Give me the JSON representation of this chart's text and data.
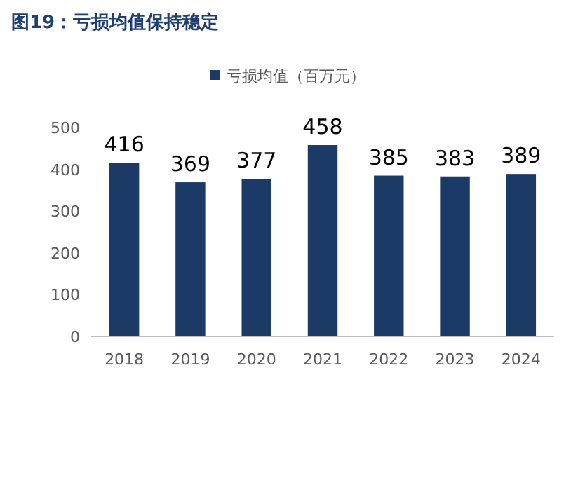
{
  "chart_data": {
    "type": "bar",
    "title": "图19：亏损均值保持稳定",
    "categories": [
      "2018",
      "2019",
      "2020",
      "2021",
      "2022",
      "2023",
      "2024"
    ],
    "series": [
      {
        "name": "亏损均值（百万元）",
        "color": "#1b3a66",
        "values": [
          416,
          369,
          377,
          458,
          385,
          383,
          389
        ]
      }
    ],
    "ylim": [
      0,
      500
    ],
    "yticks": [
      0,
      100,
      200,
      300,
      400,
      500
    ],
    "grid": false,
    "legend": "top",
    "data_labels": true
  }
}
